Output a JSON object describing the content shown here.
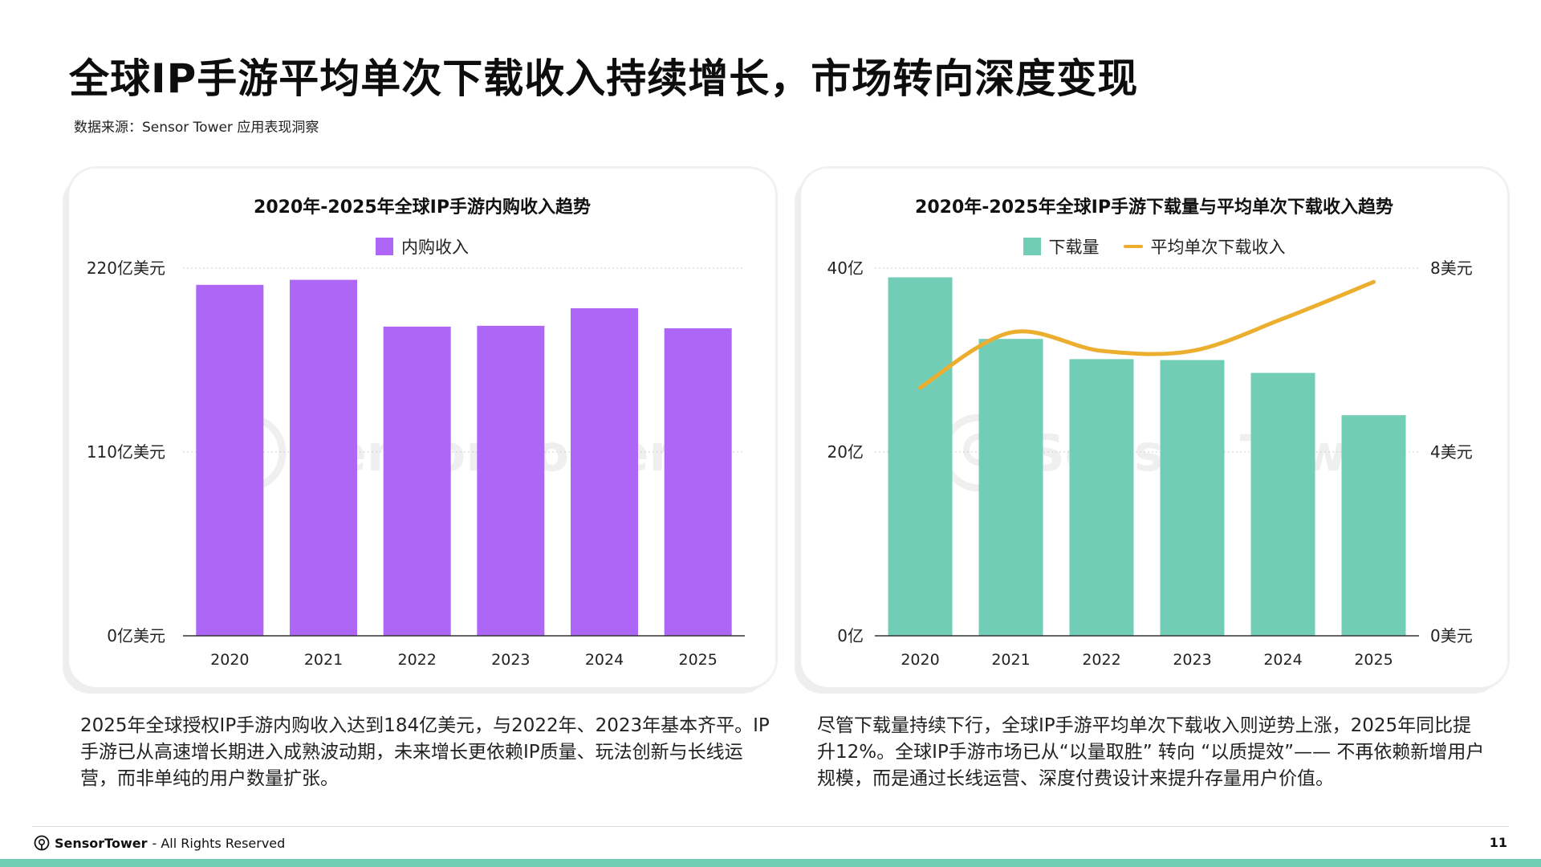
{
  "page": {
    "title": "全球IP手游平均单次下载收入持续增长，市场转向深度变现",
    "source": "数据来源：Sensor Tower 应用表现洞察",
    "watermark": "Sensor Tower",
    "footer_brand": "SensorTower",
    "footer_rights": " - All Rights Reserved",
    "page_number": "11",
    "accent_color": "#6fcfb5"
  },
  "captions": {
    "left": "2025年全球授权IP手游内购收入达到184亿美元，与2022年、2023年基本齐平。IP手游已从高速增长期进入成熟波动期，未来增长更依赖IP质量、玩法创新与长线运营，而非单纯的用户数量扩张。",
    "right": "尽管下载量持续下行，全球IP手游平均单次下载收入则逆势上涨，2025年同比提升12%。全球IP手游市场已从“以量取胜” 转向 “以质提效”—— 不再依赖新增用户规模，而是通过长线运营、深度付费设计来提升存量用户价值。"
  },
  "chart_data": [
    {
      "type": "bar",
      "title": "2020年-2025年全球IP手游内购收入趋势",
      "categories": [
        "2020",
        "2021",
        "2022",
        "2023",
        "2024",
        "2025"
      ],
      "series": [
        {
          "name": "内购收入",
          "color": "#ad66f5",
          "values": [
            210,
            213,
            185,
            185.5,
            196,
            184
          ]
        }
      ],
      "ylim": [
        0,
        220
      ],
      "yticks": [
        0,
        110,
        220
      ],
      "ytick_labels": [
        "0亿美元",
        "110亿美元",
        "220亿美元"
      ],
      "grid": true,
      "legend": "top-center"
    },
    {
      "type": "bar",
      "title": "2020年-2025年全球IP手游下载量与平均单次下载收入趋势",
      "categories": [
        "2020",
        "2021",
        "2022",
        "2023",
        "2024",
        "2025"
      ],
      "series": [
        {
          "name": "下载量",
          "color": "#72cdb7",
          "axis": "left",
          "values": [
            39,
            32.3,
            30.1,
            30,
            28.6,
            24
          ]
        },
        {
          "name": "平均单次下载收入",
          "color": "#ebae2e",
          "axis": "right",
          "type": "line",
          "values": [
            5.4,
            6.6,
            6.2,
            6.2,
            6.9,
            7.7
          ]
        }
      ],
      "ylim_left": [
        0,
        40
      ],
      "yticks_left": [
        0,
        20,
        40
      ],
      "ytick_labels_left": [
        "0亿",
        "20亿",
        "40亿"
      ],
      "ylim_right": [
        0,
        8
      ],
      "yticks_right": [
        0,
        4,
        8
      ],
      "ytick_labels_right": [
        "0美元",
        "4美元",
        "8美元"
      ],
      "grid": true,
      "legend": "top-center"
    }
  ]
}
